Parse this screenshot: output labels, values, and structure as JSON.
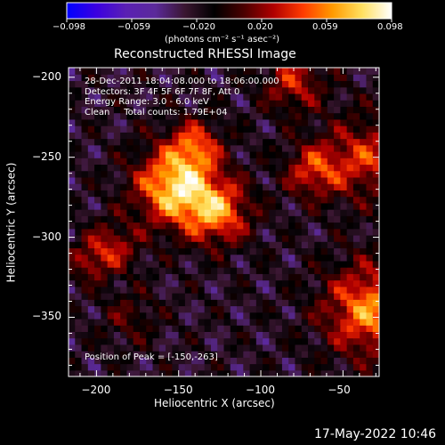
{
  "colorbar": {
    "tick_labels": [
      "−0.098",
      "−0.059",
      "−0.020",
      "0.020",
      "0.059",
      "0.098"
    ],
    "min": -0.098,
    "max": 0.098,
    "units_label": "(photons cm⁻² s⁻¹ asec⁻²)",
    "colors": [
      "#0000ff",
      "#3b00e0",
      "#5a20b4",
      "#5b2a9a",
      "#3a1630",
      "#000000",
      "#4a0000",
      "#b00000",
      "#ff3b00",
      "#ff9a00",
      "#ffe060",
      "#ffffff"
    ]
  },
  "chart_data": {
    "type": "heatmap",
    "title": "Reconstructed RHESSI Image",
    "xlabel": "Heliocentric X (arcsec)",
    "ylabel": "Heliocentric Y (arcsec)",
    "xlim": [
      -217,
      -28
    ],
    "ylim": [
      -387,
      -194
    ],
    "xticks": [
      -200,
      -150,
      -100,
      -50
    ],
    "xtick_labels": [
      "−200",
      "−150",
      "−100",
      "−50"
    ],
    "yticks": [
      -200,
      -250,
      -300,
      -350
    ],
    "ytick_labels": [
      "−200",
      "−250",
      "−300",
      "−350"
    ],
    "annotations": [
      "28-Dec-2011 18:04:08.000 to 18:06:00.000",
      "Detectors: 3F 4F 5F 6F 7F 8F, Att 0",
      "Energy Range: 3.0 - 6.0 keV",
      "Clean     Total counts: 1.79E+04"
    ],
    "peak_label": "Position of Peak = [-150,-263]",
    "peak": {
      "x": -150,
      "y": -263
    },
    "sources": [
      {
        "x": -152,
        "y": -268,
        "amp": 1.0,
        "w": 17
      },
      {
        "x": -126,
        "y": -284,
        "amp": 0.72,
        "w": 14
      },
      {
        "x": -140,
        "y": -242,
        "amp": 0.55,
        "w": 11
      },
      {
        "x": -35,
        "y": -250,
        "amp": 0.55,
        "w": 18
      },
      {
        "x": -33,
        "y": -345,
        "amp": 0.8,
        "w": 20
      },
      {
        "x": -68,
        "y": -258,
        "amp": 0.55,
        "w": 12
      },
      {
        "x": -80,
        "y": -203,
        "amp": 0.5,
        "w": 13
      },
      {
        "x": -190,
        "y": -306,
        "amp": 0.45,
        "w": 11
      },
      {
        "x": -205,
        "y": -315,
        "amp": 0.35,
        "w": 9
      },
      {
        "x": -180,
        "y": -350,
        "amp": 0.25,
        "w": 12
      }
    ],
    "background_level": -0.02
  },
  "timestamp": "17-May-2022 10:46"
}
